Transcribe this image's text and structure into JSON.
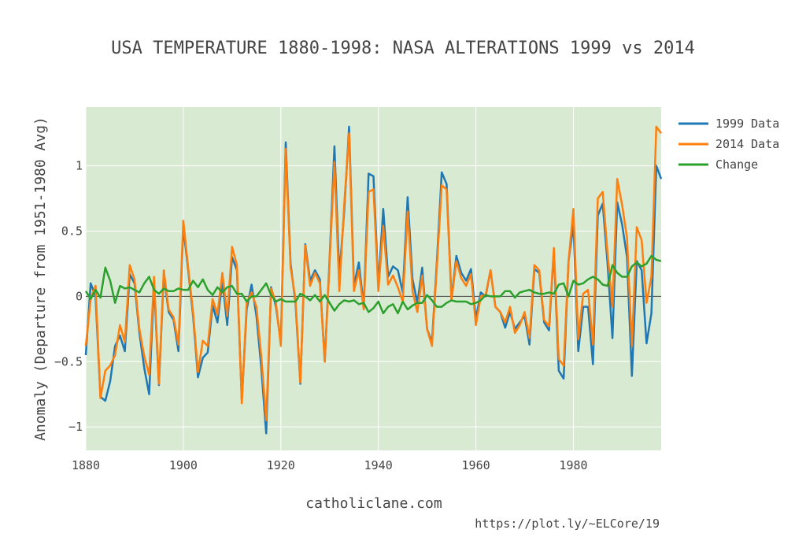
{
  "chart_data": {
    "type": "line",
    "title": "USA TEMPERATURE 1880-1998: NASA ALTERATIONS 1999 vs 2014",
    "xlabel": "",
    "ylabel": "Anomaly (Departure from 1951-1980 Avg)",
    "xlim": [
      1880,
      1998
    ],
    "ylim": [
      -1.18,
      1.45
    ],
    "x_ticks": [
      1880,
      1900,
      1920,
      1940,
      1960,
      1980
    ],
    "y_ticks": [
      -1,
      -0.5,
      0,
      0.5,
      1
    ],
    "y_tick_labels": [
      "−1",
      "−0.5",
      "0",
      "0.5",
      "1"
    ],
    "grid": true,
    "legend_position": "right",
    "plot_background": "#d9ead3",
    "x": [
      1880,
      1881,
      1882,
      1883,
      1884,
      1885,
      1886,
      1887,
      1888,
      1889,
      1890,
      1891,
      1892,
      1893,
      1894,
      1895,
      1896,
      1897,
      1898,
      1899,
      1900,
      1901,
      1902,
      1903,
      1904,
      1905,
      1906,
      1907,
      1908,
      1909,
      1910,
      1911,
      1912,
      1913,
      1914,
      1915,
      1916,
      1917,
      1918,
      1919,
      1920,
      1921,
      1922,
      1923,
      1924,
      1925,
      1926,
      1927,
      1928,
      1929,
      1930,
      1931,
      1932,
      1933,
      1934,
      1935,
      1936,
      1937,
      1938,
      1939,
      1940,
      1941,
      1942,
      1943,
      1944,
      1945,
      1946,
      1947,
      1948,
      1949,
      1950,
      1951,
      1952,
      1953,
      1954,
      1955,
      1956,
      1957,
      1958,
      1959,
      1960,
      1961,
      1962,
      1963,
      1964,
      1965,
      1966,
      1967,
      1968,
      1969,
      1970,
      1971,
      1972,
      1973,
      1974,
      1975,
      1976,
      1977,
      1978,
      1979,
      1980,
      1981,
      1982,
      1983,
      1984,
      1985,
      1986,
      1987,
      1988,
      1989,
      1990,
      1991,
      1992,
      1993,
      1994,
      1995,
      1996,
      1997,
      1998
    ],
    "series": [
      {
        "name": "1999 Data",
        "color": "#1f77b4",
        "values": [
          -0.45,
          0.1,
          0.0,
          -0.77,
          -0.8,
          -0.65,
          -0.38,
          -0.3,
          -0.42,
          0.17,
          0.1,
          -0.28,
          -0.55,
          -0.75,
          0.1,
          -0.68,
          0.17,
          -0.12,
          -0.18,
          -0.42,
          0.53,
          0.2,
          -0.15,
          -0.62,
          -0.47,
          -0.43,
          -0.07,
          -0.2,
          0.12,
          -0.22,
          0.3,
          0.2,
          -0.8,
          -0.1,
          0.09,
          -0.15,
          -0.55,
          -1.05,
          0.07,
          -0.08,
          -0.35,
          1.18,
          0.25,
          -0.05,
          -0.67,
          0.4,
          0.12,
          0.2,
          0.13,
          -0.5,
          0.28,
          1.15,
          0.16,
          0.65,
          1.3,
          0.08,
          0.26,
          -0.08,
          0.94,
          0.92,
          0.08,
          0.67,
          0.15,
          0.23,
          0.2,
          0.03,
          0.76,
          0.13,
          -0.05,
          0.22,
          -0.25,
          -0.35,
          0.26,
          0.95,
          0.86,
          -0.02,
          0.31,
          0.18,
          0.12,
          0.21,
          -0.17,
          0.03,
          0.0,
          0.2,
          -0.08,
          -0.12,
          -0.24,
          -0.12,
          -0.25,
          -0.2,
          -0.15,
          -0.37,
          0.21,
          0.18,
          -0.2,
          -0.26,
          0.35,
          -0.57,
          -0.63,
          0.27,
          0.55,
          -0.42,
          -0.08,
          -0.08,
          -0.52,
          0.62,
          0.71,
          0.25,
          -0.32,
          0.72,
          0.55,
          0.3,
          -0.61,
          0.27,
          0.2,
          -0.36,
          -0.13,
          1.0,
          0.9
        ]
      },
      {
        "name": "2014 Data",
        "color": "#ff7f0e",
        "values": [
          -0.38,
          -0.02,
          0.08,
          -0.78,
          -0.57,
          -0.53,
          -0.45,
          -0.22,
          -0.35,
          0.24,
          0.13,
          -0.25,
          -0.46,
          -0.6,
          0.15,
          -0.67,
          0.2,
          -0.1,
          -0.16,
          -0.37,
          0.58,
          0.22,
          -0.12,
          -0.58,
          -0.34,
          -0.38,
          -0.02,
          -0.14,
          0.18,
          -0.15,
          0.38,
          0.24,
          -0.82,
          -0.05,
          0.03,
          -0.08,
          -0.46,
          -0.95,
          0.06,
          -0.05,
          -0.38,
          1.13,
          0.22,
          -0.02,
          -0.66,
          0.39,
          0.08,
          0.18,
          0.1,
          -0.5,
          0.25,
          1.03,
          0.04,
          0.7,
          1.25,
          0.04,
          0.2,
          -0.1,
          0.8,
          0.82,
          0.04,
          0.54,
          0.09,
          0.16,
          0.07,
          -0.04,
          0.65,
          0.04,
          -0.12,
          0.16,
          -0.25,
          -0.38,
          0.22,
          0.85,
          0.82,
          -0.03,
          0.27,
          0.14,
          0.08,
          0.17,
          -0.22,
          0.0,
          0.01,
          0.2,
          -0.08,
          -0.12,
          -0.2,
          -0.08,
          -0.28,
          -0.22,
          -0.12,
          -0.32,
          0.24,
          0.2,
          -0.18,
          -0.23,
          0.37,
          -0.48,
          -0.53,
          0.27,
          0.67,
          -0.33,
          0.02,
          0.05,
          -0.37,
          0.75,
          0.8,
          0.33,
          -0.08,
          0.9,
          0.7,
          0.45,
          -0.38,
          0.53,
          0.43,
          -0.05,
          0.15,
          1.3,
          1.25
        ]
      },
      {
        "name": "Change",
        "color": "#2ca02c",
        "values": [
          0.04,
          -0.02,
          0.05,
          -0.01,
          0.22,
          0.12,
          -0.05,
          0.08,
          0.06,
          0.07,
          0.05,
          0.03,
          0.1,
          0.15,
          0.05,
          0.02,
          0.06,
          0.04,
          0.04,
          0.06,
          0.05,
          0.05,
          0.12,
          0.07,
          0.13,
          0.05,
          0.01,
          0.07,
          0.03,
          0.07,
          0.08,
          0.02,
          0.02,
          -0.04,
          0.0,
          0.0,
          0.05,
          0.1,
          0.01,
          -0.04,
          -0.02,
          -0.04,
          -0.04,
          -0.04,
          0.02,
          0.0,
          -0.03,
          0.01,
          -0.04,
          0.01,
          -0.05,
          -0.11,
          -0.06,
          -0.03,
          -0.04,
          -0.03,
          -0.06,
          -0.05,
          -0.12,
          -0.09,
          -0.04,
          -0.13,
          -0.08,
          -0.06,
          -0.13,
          -0.04,
          -0.1,
          -0.07,
          -0.05,
          -0.05,
          0.01,
          -0.03,
          -0.08,
          -0.08,
          -0.05,
          -0.03,
          -0.04,
          -0.04,
          -0.04,
          -0.06,
          -0.05,
          -0.03,
          0.01,
          0.0,
          0.0,
          0.0,
          0.04,
          0.04,
          -0.01,
          0.03,
          0.04,
          0.05,
          0.03,
          0.02,
          0.02,
          0.03,
          0.02,
          0.09,
          0.1,
          0.0,
          0.12,
          0.09,
          0.1,
          0.13,
          0.15,
          0.13,
          0.09,
          0.08,
          0.24,
          0.18,
          0.15,
          0.15,
          0.23,
          0.26,
          0.23,
          0.25,
          0.31,
          0.28,
          0.27
        ]
      }
    ]
  },
  "footer": {
    "source": "catholiclane.com",
    "credit": "https://plot.ly/~ELCore/19"
  }
}
